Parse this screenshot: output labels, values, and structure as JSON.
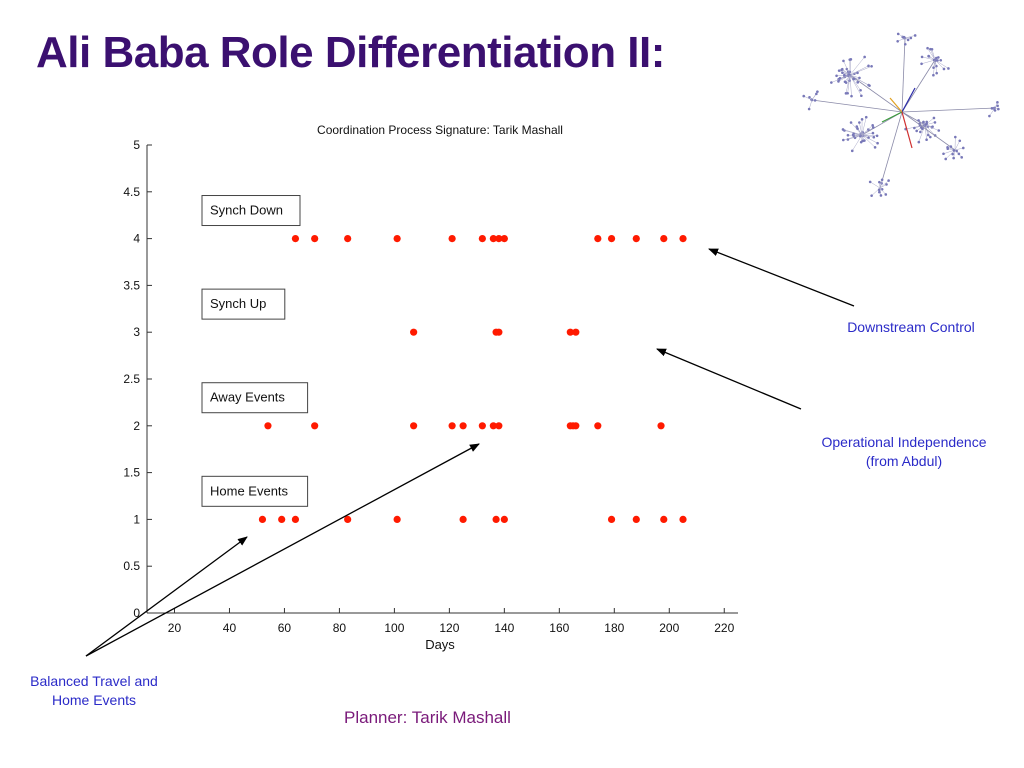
{
  "slide": {
    "title": "Ali Baba Role Differentiation II:",
    "footer": "Planner: Tarik Mashall"
  },
  "annotations": {
    "downstream": "Downstream Control",
    "operational_line1": "Operational Independence",
    "operational_line2": "(from Abdul)",
    "balanced_line1": "Balanced Travel and",
    "balanced_line2": "Home Events"
  },
  "network_graphic": {
    "icon": "network-graph-icon"
  },
  "colors": {
    "title": "#3b1070",
    "annotation": "#2b2bc8",
    "footer": "#7a1a7a",
    "points": "#ff1a00"
  },
  "chart_data": {
    "type": "scatter",
    "title": "Coordination Process Signature: Tarik Mashall",
    "xlabel": "Days",
    "ylabel": "",
    "xlim": [
      10,
      225
    ],
    "ylim": [
      0,
      5
    ],
    "xticks": [
      20,
      40,
      60,
      80,
      100,
      120,
      140,
      160,
      180,
      200,
      220
    ],
    "yticks": [
      0,
      0.5,
      1,
      1.5,
      2,
      2.5,
      3,
      3.5,
      4,
      4.5,
      5
    ],
    "grid": false,
    "labels": [
      {
        "text": "Synch Down",
        "y": 4
      },
      {
        "text": "Synch Up",
        "y": 3
      },
      {
        "text": "Away Events",
        "y": 2
      },
      {
        "text": "Home Events",
        "y": 1
      }
    ],
    "series": [
      {
        "values": [
          [
            64,
            4
          ],
          [
            71,
            4
          ],
          [
            83,
            4
          ],
          [
            101,
            4
          ],
          [
            121,
            4
          ],
          [
            132,
            4
          ],
          [
            136,
            4
          ],
          [
            138,
            4
          ],
          [
            140,
            4
          ],
          [
            174,
            4
          ],
          [
            179,
            4
          ],
          [
            188,
            4
          ],
          [
            198,
            4
          ],
          [
            205,
            4
          ],
          [
            107,
            3
          ],
          [
            137,
            3
          ],
          [
            138,
            3
          ],
          [
            164,
            3
          ],
          [
            166,
            3
          ],
          [
            54,
            2
          ],
          [
            71,
            2
          ],
          [
            107,
            2
          ],
          [
            121,
            2
          ],
          [
            125,
            2
          ],
          [
            132,
            2
          ],
          [
            136,
            2
          ],
          [
            138,
            2
          ],
          [
            164,
            2
          ],
          [
            165,
            2
          ],
          [
            166,
            2
          ],
          [
            174,
            2
          ],
          [
            197,
            2
          ],
          [
            52,
            1
          ],
          [
            59,
            1
          ],
          [
            64,
            1
          ],
          [
            83,
            1
          ],
          [
            101,
            1
          ],
          [
            125,
            1
          ],
          [
            137,
            1
          ],
          [
            140,
            1
          ],
          [
            179,
            1
          ],
          [
            188,
            1
          ],
          [
            198,
            1
          ],
          [
            205,
            1
          ]
        ]
      }
    ]
  }
}
